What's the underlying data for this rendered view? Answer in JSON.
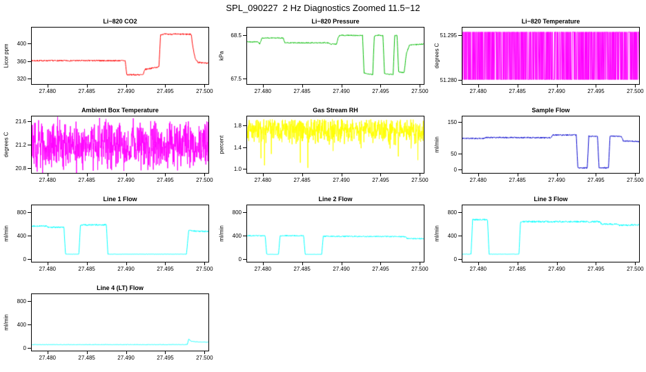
{
  "page_title": "SPL_090227  2 Hz Diagnostics Zoomed 11.5−12",
  "x_axis": {
    "lim": [
      27.478,
      27.5005
    ],
    "ticks": [
      27.48,
      27.485,
      27.49,
      27.495,
      27.5
    ],
    "labels": [
      "27.480",
      "27.485",
      "27.490",
      "27.495",
      "27.500"
    ]
  },
  "chart_data": [
    {
      "type": "line",
      "title": "Li−820 CO2",
      "ylabel": "Licor ppm",
      "color": "#ff0000",
      "ylim": [
        308,
        436
      ],
      "yticks": [
        320,
        360,
        400
      ],
      "ytick_labels": [
        "320",
        "360",
        "400"
      ],
      "noise": 1.6,
      "waypoints": [
        [
          27.478,
          361
        ],
        [
          27.4899,
          361
        ],
        [
          27.4901,
          329
        ],
        [
          27.4922,
          329
        ],
        [
          27.4924,
          341
        ],
        [
          27.4942,
          347
        ],
        [
          27.4944,
          420
        ],
        [
          27.4947,
          421
        ],
        [
          27.4983,
          421
        ],
        [
          27.4985,
          395
        ],
        [
          27.4988,
          366
        ],
        [
          27.4992,
          357
        ],
        [
          27.5005,
          355
        ]
      ]
    },
    {
      "type": "line",
      "title": "Li−820 Pressure",
      "ylabel": "kPa",
      "color": "#00bb00",
      "ylim": [
        67.38,
        68.68
      ],
      "yticks": [
        67.5,
        68.5
      ],
      "ytick_labels": [
        "67.5",
        "68.5"
      ],
      "noise": 0.012,
      "waypoints": [
        [
          27.478,
          68.35
        ],
        [
          27.4794,
          68.35
        ],
        [
          27.4796,
          68.3
        ],
        [
          27.4799,
          68.44
        ],
        [
          27.4826,
          68.44
        ],
        [
          27.4828,
          68.33
        ],
        [
          27.4884,
          68.33
        ],
        [
          27.4886,
          68.3
        ],
        [
          27.4894,
          68.3
        ],
        [
          27.4896,
          68.45
        ],
        [
          27.4898,
          68.5
        ],
        [
          27.4927,
          68.5
        ],
        [
          27.4929,
          67.63
        ],
        [
          27.494,
          67.6
        ],
        [
          27.4942,
          68.48
        ],
        [
          27.4944,
          68.5
        ],
        [
          27.4953,
          68.5
        ],
        [
          27.4955,
          67.62
        ],
        [
          27.4966,
          67.6
        ],
        [
          27.4968,
          68.5
        ],
        [
          27.4971,
          68.5
        ],
        [
          27.4973,
          67.66
        ],
        [
          27.498,
          67.64
        ],
        [
          27.4983,
          68.1
        ],
        [
          27.4987,
          68.28
        ],
        [
          27.5005,
          68.3
        ]
      ]
    },
    {
      "type": "square",
      "title": "Li−820 Temperature",
      "ylabel": "degrees C",
      "color": "#ff00ff",
      "ylim": [
        51.2785,
        51.2975
      ],
      "yticks": [
        51.28,
        51.295
      ],
      "ytick_labels": [
        "51.280",
        "51.295"
      ],
      "values": [
        51.28,
        51.296
      ],
      "switch_prob": 0.6
    },
    {
      "type": "noise",
      "title": "Ambient Box Temperature",
      "ylabel": "degrees C",
      "color": "#ff00ff",
      "ylim": [
        20.72,
        21.68
      ],
      "yticks": [
        20.8,
        21.2,
        21.6
      ],
      "ytick_labels": [
        "20.8",
        "21.2",
        "21.6"
      ],
      "mean": 21.2,
      "amp": 0.5,
      "n": 750
    },
    {
      "type": "noise",
      "title": "Gas Stream RH",
      "ylabel": "percent",
      "color": "#ffff00",
      "ylim": [
        0.93,
        1.97
      ],
      "yticks": [
        1.0,
        1.4,
        1.8
      ],
      "ytick_labels": [
        "1.0",
        "1.4",
        "1.8"
      ],
      "mean": 1.72,
      "amp": 0.28,
      "cap_hi": 1.92,
      "spike_prob": 0.02,
      "spike_max_drop": 0.7,
      "n": 750
    },
    {
      "type": "line",
      "title": "Sample Flow",
      "ylabel": "ml/min",
      "color": "#0000cc",
      "ylim": [
        -12,
        168
      ],
      "yticks": [
        0,
        50,
        150
      ],
      "ytick_labels": [
        "0",
        "50",
        "150"
      ],
      "noise": 2,
      "waypoints": [
        [
          27.478,
          98
        ],
        [
          27.4808,
          98
        ],
        [
          27.481,
          101
        ],
        [
          27.4893,
          100
        ],
        [
          27.4895,
          109
        ],
        [
          27.4925,
          109
        ],
        [
          27.4927,
          4
        ],
        [
          27.4939,
          4
        ],
        [
          27.4941,
          105
        ],
        [
          27.4952,
          105
        ],
        [
          27.4954,
          4
        ],
        [
          27.4966,
          4
        ],
        [
          27.4968,
          105
        ],
        [
          27.4982,
          105
        ],
        [
          27.4985,
          90
        ],
        [
          27.5005,
          88
        ]
      ]
    },
    {
      "type": "line",
      "title": "Line 1 Flow",
      "ylabel": "ml/min",
      "color": "#00ffff",
      "ylim": [
        -45,
        920
      ],
      "yticks": [
        0,
        400,
        800
      ],
      "ytick_labels": [
        "0",
        "400",
        "800"
      ],
      "noise": 12,
      "noise_above": 200,
      "waypoints": [
        [
          27.478,
          565
        ],
        [
          27.4799,
          565
        ],
        [
          27.4801,
          545
        ],
        [
          27.4821,
          545
        ],
        [
          27.4823,
          85
        ],
        [
          27.484,
          85
        ],
        [
          27.4842,
          585
        ],
        [
          27.4875,
          585
        ],
        [
          27.4877,
          85
        ],
        [
          27.4977,
          85
        ],
        [
          27.498,
          500
        ],
        [
          27.4984,
          480
        ],
        [
          27.5005,
          475
        ]
      ]
    },
    {
      "type": "line",
      "title": "Line 2 Flow",
      "ylabel": "ml/min",
      "color": "#00ffff",
      "ylim": [
        -45,
        920
      ],
      "yticks": [
        0,
        400,
        800
      ],
      "ytick_labels": [
        "0",
        "400",
        "800"
      ],
      "noise": 10,
      "noise_above": 200,
      "waypoints": [
        [
          27.478,
          400
        ],
        [
          27.4803,
          400
        ],
        [
          27.4805,
          82
        ],
        [
          27.482,
          82
        ],
        [
          27.4822,
          400
        ],
        [
          27.4852,
          400
        ],
        [
          27.4854,
          82
        ],
        [
          27.4875,
          82
        ],
        [
          27.4877,
          390
        ],
        [
          27.4981,
          385
        ],
        [
          27.4984,
          352
        ],
        [
          27.5005,
          350
        ]
      ]
    },
    {
      "type": "line",
      "title": "Line 3 Flow",
      "ylabel": "ml/min",
      "color": "#00ffff",
      "ylim": [
        -45,
        920
      ],
      "yticks": [
        0,
        400,
        800
      ],
      "ytick_labels": [
        "0",
        "400",
        "800"
      ],
      "noise": 14,
      "noise_above": 200,
      "waypoints": [
        [
          27.478,
          85
        ],
        [
          27.4791,
          85
        ],
        [
          27.4793,
          675
        ],
        [
          27.4812,
          675
        ],
        [
          27.4814,
          85
        ],
        [
          27.4852,
          85
        ],
        [
          27.4854,
          640
        ],
        [
          27.4955,
          640
        ],
        [
          27.4957,
          600
        ],
        [
          27.4977,
          600
        ],
        [
          27.4979,
          580
        ],
        [
          27.5005,
          585
        ]
      ]
    },
    {
      "type": "line",
      "title": "Line 4 (LT) Flow",
      "ylabel": "ml/min",
      "color": "#00ffff",
      "ylim": [
        -45,
        920
      ],
      "yticks": [
        0,
        400,
        800
      ],
      "ytick_labels": [
        "0",
        "400",
        "800"
      ],
      "noise": 4,
      "waypoints": [
        [
          27.478,
          58
        ],
        [
          27.4975,
          58
        ],
        [
          27.4978,
          60
        ],
        [
          27.498,
          155
        ],
        [
          27.4983,
          115
        ],
        [
          27.499,
          105
        ],
        [
          27.5005,
          100
        ]
      ]
    }
  ]
}
